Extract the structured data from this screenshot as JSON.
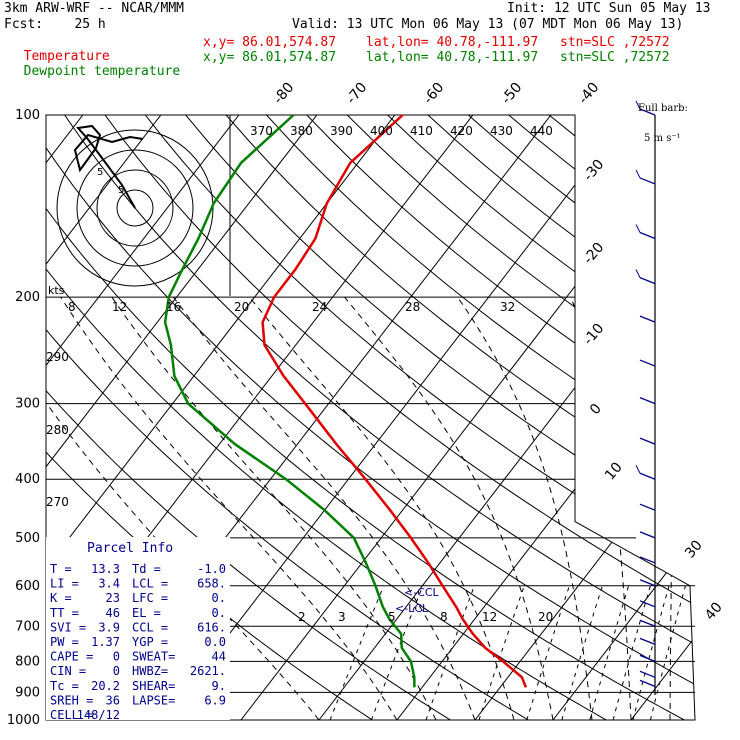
{
  "header": {
    "model": "3km ARW-WRF -- NCAR/MMM",
    "fcst_label": "Fcst:",
    "fcst_value": "25 h",
    "init": "Init: 12 UTC Sun 05 May 13",
    "valid": "Valid: 13 UTC Mon 06 May 13 (07 MDT Mon 06 May 13)",
    "temp_line": {
      "name": "Temperature",
      "xy": "x,y= 86.01,574.87",
      "latlon": "lat,lon= 40.78,-111.97",
      "stn": "stn=SLC ,72572"
    },
    "dew_line": {
      "name": "Dewpoint temperature",
      "xy": "x,y= 86.01,574.87",
      "latlon": "lat,lon= 40.78,-111.97",
      "stn": "stn=SLC ,72572"
    }
  },
  "colors": {
    "temperature": "#e00000",
    "dewpoint": "#008000",
    "barbs": "#00008b",
    "parcel_title": "#00008b",
    "text": "#000000"
  },
  "barb_legend": {
    "line1": "Full barb:",
    "line2": "5 m s⁻¹"
  },
  "pressure_labels": [
    "100",
    "200",
    "300",
    "400",
    "500",
    "600",
    "700",
    "800",
    "900",
    "1000"
  ],
  "isotherm_labels": [
    "-80",
    "-70",
    "-60",
    "-50",
    "-40",
    "-30",
    "-20",
    "-10",
    "0",
    "10",
    "30",
    "40"
  ],
  "theta_labels": [
    "370",
    "380",
    "390",
    "400",
    "410",
    "420",
    "430",
    "440"
  ],
  "mixing_ratio_labels_upper": [
    "8",
    "12",
    "16",
    "20",
    "24",
    "28",
    "32"
  ],
  "mixing_ratio_labels_lower": [
    "2",
    "3",
    "5",
    "8",
    "12",
    "20"
  ],
  "side_labels": [
    "290",
    "280",
    "270"
  ],
  "hodograph": {
    "units": "kts",
    "ring_labels": [
      "5",
      "5"
    ]
  },
  "ccl_label": "<-CCL",
  "lcl_label": "<-LCL",
  "parcel_info": {
    "title": "Parcel Info",
    "rows": [
      [
        "T  =",
        "13.3",
        "Td =",
        "-1.0"
      ],
      [
        "LI =",
        "3.4",
        "LCL =",
        "658."
      ],
      [
        "K  =",
        "23",
        "LFC =",
        "0."
      ],
      [
        "TT =",
        "46",
        "EL =",
        "0."
      ],
      [
        "SVI =",
        "3.9",
        "CCL =",
        "616."
      ],
      [
        "PW =",
        "1.37",
        "YGP =",
        "0.0"
      ],
      [
        "CAPE =",
        "0",
        "SWEAT=",
        "44"
      ],
      [
        "CIN =",
        "0",
        "HWBZ=",
        "2621."
      ],
      [
        "Tc =",
        "20.2",
        "SHEAR=",
        "9."
      ],
      [
        "SREH =",
        "36",
        "LAPSE=",
        "6.9"
      ],
      [
        "CELL =",
        "148/12",
        "",
        ""
      ]
    ]
  },
  "chart_data": {
    "type": "line",
    "title": "3km ARW-WRF -- NCAR/MMM",
    "xlabel": "",
    "ylabel": "",
    "y_scale": "log-pressure",
    "ylim": [
      1000,
      100
    ],
    "x_skew": "skew-T",
    "series": [
      {
        "name": "Temperature",
        "pressure": [
          883,
          850,
          800,
          760,
          720,
          700,
          680,
          650,
          600,
          550,
          500,
          450,
          400,
          350,
          300,
          270,
          240,
          220,
          200,
          180,
          160,
          140,
          120,
          100
        ],
        "temperature": [
          13.3,
          11.8,
          7.8,
          4.2,
          1.2,
          -0.2,
          -1.6,
          -3.6,
          -7.4,
          -11.5,
          -16.2,
          -21.6,
          -27.8,
          -35,
          -43,
          -48.5,
          -54,
          -56.5,
          -57.5,
          -57.5,
          -58,
          -60,
          -61,
          -59
        ]
      },
      {
        "name": "Dewpoint temperature",
        "pressure": [
          883,
          850,
          800,
          760,
          720,
          700,
          680,
          650,
          600,
          550,
          500,
          450,
          400,
          350,
          300,
          270,
          240,
          220,
          200,
          180,
          160,
          140,
          120,
          100
        ],
        "dewpoint": [
          -1,
          -2,
          -4,
          -6.5,
          -8,
          -9.5,
          -11,
          -13,
          -16,
          -19.5,
          -23.5,
          -30,
          -38,
          -48,
          -58,
          -62.5,
          -66,
          -69,
          -71,
          -72,
          -73,
          -74.5,
          -75,
          -73
        ]
      }
    ],
    "wind_profile": {
      "units": "m s-1 (full barb = 5)",
      "pressure": [
        100,
        130,
        160,
        190,
        220,
        260,
        300,
        350,
        400,
        450,
        500,
        550,
        600,
        650,
        700,
        750,
        800,
        850,
        880
      ],
      "speed": [
        8,
        6,
        6,
        5,
        4,
        3,
        3,
        4,
        5,
        4,
        4,
        3,
        3,
        3,
        2,
        2,
        3,
        3,
        4
      ]
    }
  }
}
